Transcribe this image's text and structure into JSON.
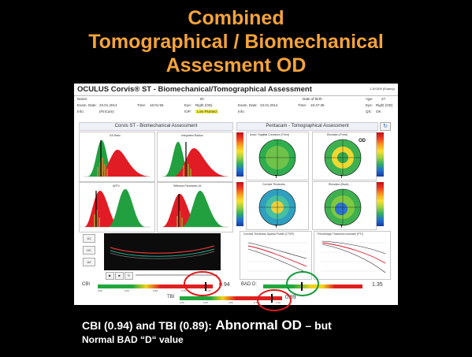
{
  "slide": {
    "title_lines": [
      "Combined",
      "Tomographical / Biomechanical",
      "Assesment OD"
    ],
    "footer": {
      "part1": "CBI (0.94) and TBI (0.89):",
      "part2": "Abnormal OD",
      "part3": "– but",
      "line2": "Normal BAD  “D“ value"
    }
  },
  "app": {
    "title": "OCULUS Corvis® ST - Biomechanical/Tomographical Assessment",
    "version": "1.3r1309 (Examp)",
    "info": {
      "name_label": "Name:",
      "id_label": "ID:",
      "dob_label": "Date of birth:",
      "age_label": "Age:",
      "age": "27",
      "exam_date_label": "Exam. Date:",
      "exam_date_1": "23.01.2014",
      "time_label": "Time:",
      "time_1": "16:01:56",
      "eye_label": "Eye:",
      "eye_1": "Right (OD)",
      "exam_date_2": "23.01.2014",
      "time_2": "15:47:36",
      "eye_2": "Right (OD)",
      "info_label": "Info:",
      "info_1": "(FinCam)",
      "iop_label": "IOP:",
      "iop_status": "Low Plunted",
      "qs_label": "QS:",
      "qs": "OK"
    },
    "sections": {
      "left": "Corvis ST - Biomechanical Assessment",
      "right": "Pentacam - Tomographical Assessment"
    },
    "biomech_panels": [
      "DA Ratio",
      "Integrated Radius",
      "ARTh",
      "Stiffness Parameter A1"
    ],
    "tomo_panels": [
      "Axial / Sagittal Curvature (Front)",
      "Elevation (Front)",
      "Corneal Thickness",
      "Elevation (Back)"
    ],
    "graph_titles": [
      "Corneal Thickness Spatial Profile (CTSP)",
      "Percentage Thickness Increase (PTI)"
    ],
    "od_label": "OD",
    "buttons": [
      "A1",
      "HC",
      "A2"
    ],
    "scale_ticks": [
      "0.00",
      "0.25",
      "0.50",
      "0.75",
      "1.00"
    ],
    "cbi": {
      "label": "CBI",
      "value": "0.94",
      "fraction": 0.94
    },
    "bad": {
      "label": "BAD D:",
      "value": "1.35"
    },
    "tbi": {
      "label": "TBI",
      "value": "0.89",
      "fraction": 0.89
    },
    "colors": {
      "accent": "#f5a33a",
      "bg": "#000000",
      "green": "#21a83c",
      "red": "#e02020",
      "yellow": "#f2d21c",
      "circle_red": "#e0191b",
      "circle_green": "#149a3c"
    }
  }
}
